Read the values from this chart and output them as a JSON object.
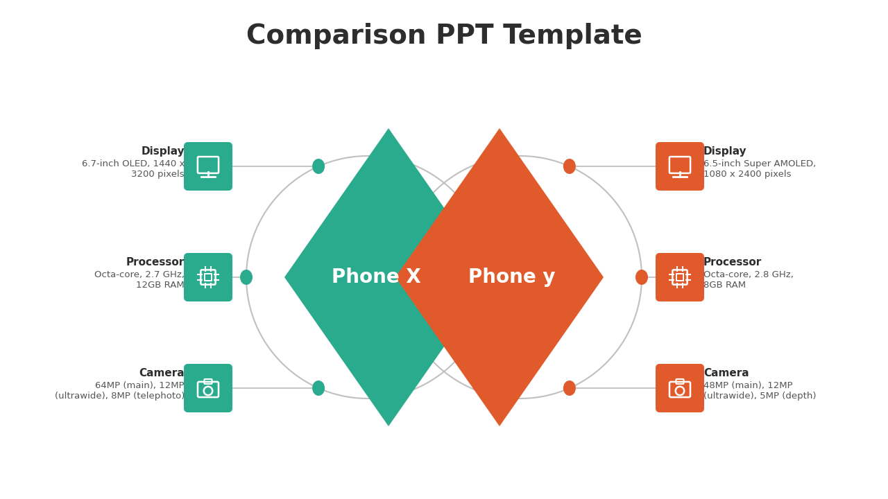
{
  "title": "Comparison PPT Template",
  "title_fontsize": 28,
  "title_fontweight": "bold",
  "title_color": "#2d2d2d",
  "bg_color": "#ffffff",
  "teal_color": "#2bab8e",
  "orange_color": "#e05a2b",
  "gray_color": "#c0c0c0",
  "phone_x_label": "Phone X",
  "phone_y_label": "Phone y",
  "phone_label_color": "#ffffff",
  "phone_label_fontsize": 20,
  "left_features": [
    {
      "label": "Display",
      "desc": "6.7-inch OLED, 1440 x\n3200 pixels",
      "icon": "display"
    },
    {
      "label": "Processor",
      "desc": "Octa-core, 2.7 GHz,\n12GB RAM",
      "icon": "processor"
    },
    {
      "label": "Camera",
      "desc": "64MP (main), 12MP\n(ultrawide), 8MP (telephoto)",
      "icon": "camera"
    }
  ],
  "right_features": [
    {
      "label": "Display",
      "desc": "6.5-inch Super AMOLED,\n1080 x 2400 pixels",
      "icon": "display"
    },
    {
      "label": "Processor",
      "desc": "Octa-core, 2.8 GHz,\n8GB RAM",
      "icon": "processor"
    },
    {
      "label": "Camera",
      "desc": "48MP (main), 12MP\n(ultrawide), 5MP (depth)",
      "icon": "camera"
    }
  ]
}
